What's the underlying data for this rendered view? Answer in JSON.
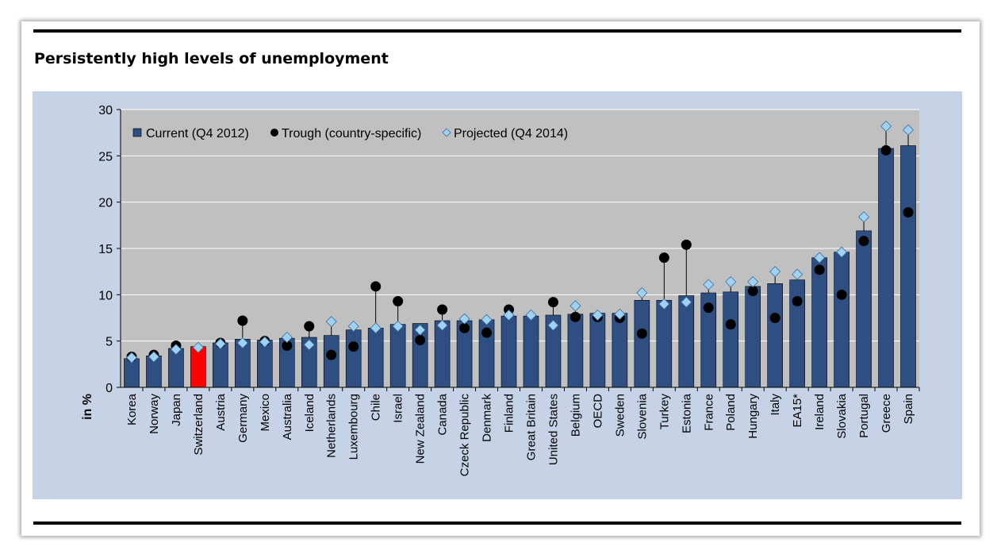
{
  "title": "Persistently high levels of unemployment",
  "colors": {
    "bar": "#2f4f82",
    "bar_highlight": "#ff0000",
    "plot_background": "#c0c0c0",
    "panel_background": "#c6d3e7",
    "trough": "#000000",
    "projected": "#9fd1f2"
  },
  "chart_data": {
    "type": "bar",
    "title": "Persistently high levels of unemployment",
    "xlabel": "",
    "ylabel": "in %",
    "ylim": [
      0,
      30
    ],
    "yticks": [
      "0",
      "5",
      "10",
      "15",
      "20",
      "25",
      "30"
    ],
    "grid": true,
    "legend_position": "top-left",
    "highlight_category": "Switzerland",
    "categories": [
      "Korea",
      "Norway",
      "Japan",
      "Switzerland",
      "Austria",
      "Germany",
      "Mexico",
      "Australia",
      "Iceland",
      "Netherlands",
      "Luxembourg",
      "Chile",
      "Israel",
      "New Zealand",
      "Canada",
      "Czeck Republic",
      "Denmark",
      "Finland",
      "Great Britain",
      "United States",
      "Belgium",
      "OECD",
      "Sweden",
      "Slovenia",
      "Turkey",
      "Estonia",
      "France",
      "Poland",
      "Hungary",
      "Italy",
      "EA15*",
      "Ireland",
      "Slovakia",
      "Portugal",
      "Greece",
      "Spain"
    ],
    "series": [
      {
        "name": "Current (Q4 2012)",
        "marker": "bar",
        "values": [
          3.1,
          3.4,
          4.2,
          4.4,
          4.8,
          5.2,
          5.1,
          5.3,
          5.4,
          5.6,
          6.2,
          6.4,
          6.8,
          6.9,
          7.2,
          7.2,
          7.3,
          7.7,
          7.7,
          7.8,
          7.9,
          8.0,
          8.0,
          9.4,
          9.4,
          9.9,
          10.2,
          10.3,
          10.9,
          11.2,
          11.6,
          14.0,
          14.6,
          16.9,
          25.8,
          26.1
        ]
      },
      {
        "name": "Trough (country-specific)",
        "marker": "circle",
        "values": [
          3.3,
          3.5,
          4.5,
          null,
          4.8,
          7.2,
          5.0,
          4.5,
          6.6,
          3.5,
          4.4,
          10.9,
          9.3,
          5.1,
          8.4,
          6.4,
          5.9,
          8.4,
          null,
          9.2,
          7.6,
          7.6,
          7.5,
          5.8,
          14.0,
          15.4,
          8.6,
          6.8,
          10.4,
          7.5,
          9.3,
          12.7,
          10.0,
          15.8,
          25.6,
          18.9
        ]
      },
      {
        "name": "Projected (Q4 2014)",
        "marker": "diamond",
        "values": [
          3.2,
          3.3,
          4.1,
          4.3,
          4.7,
          4.8,
          4.9,
          5.4,
          4.6,
          7.1,
          6.6,
          6.4,
          6.6,
          6.2,
          6.7,
          7.4,
          7.3,
          7.8,
          7.8,
          6.7,
          8.8,
          7.8,
          7.9,
          10.2,
          9.0,
          9.2,
          11.1,
          11.4,
          11.4,
          12.5,
          12.2,
          14.0,
          14.6,
          18.4,
          28.2,
          27.8
        ]
      }
    ]
  }
}
